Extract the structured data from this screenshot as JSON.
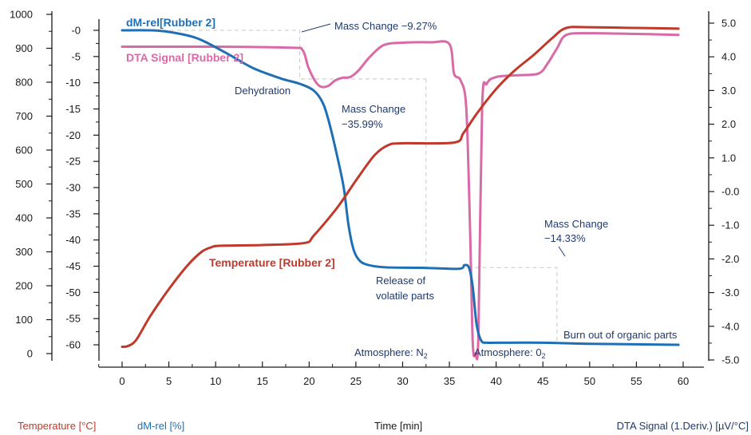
{
  "chart_data": {
    "type": "line",
    "x_axis": {
      "label": "Time [min]",
      "range": [
        0,
        60
      ],
      "ticks": [
        0,
        5,
        10,
        15,
        20,
        25,
        30,
        35,
        40,
        45,
        50,
        55,
        60
      ]
    },
    "y_axes": {
      "temperature": {
        "label": "Temperature [°C]",
        "range": [
          0,
          1000
        ],
        "ticks": [
          0,
          100,
          200,
          300,
          400,
          500,
          600,
          700,
          800,
          900,
          1000
        ],
        "color": "#c0392b"
      },
      "mass": {
        "label": "dM-rel [%]",
        "range": [
          -60,
          0
        ],
        "ticks": [
          -60,
          -55,
          -50,
          -45,
          -40,
          -35,
          -30,
          -25,
          -20,
          -15,
          -10,
          -5,
          0
        ],
        "tick_labels": [
          "-60",
          "-55",
          "-50",
          "-45",
          "-40",
          "-35",
          "-30",
          "-25",
          "-20",
          "-15",
          "-10",
          "-5",
          "-0"
        ],
        "color": "#1f6fb4"
      },
      "dta": {
        "label": "DTA Signal (1.Deriv.) [µV/°C]",
        "range": [
          -5.0,
          5.0
        ],
        "ticks": [
          -5.0,
          -4.0,
          -3.0,
          -2.0,
          -1.0,
          0.0,
          1.0,
          2.0,
          3.0,
          4.0,
          5.0
        ],
        "tick_labels": [
          "-5.0",
          "-4.0",
          "-3.0",
          "-2.0",
          "-1.0",
          "-0.0",
          "1.0",
          "2.0",
          "3.0",
          "4.0",
          "5.0"
        ],
        "color": "#d96aa8"
      }
    },
    "series": [
      {
        "name": "Temperature [Rubber 2]",
        "axis": "temperature",
        "color": "#c0392b",
        "x": [
          0,
          0.6,
          1.5,
          3,
          5,
          7,
          8.5,
          9.5,
          10.5,
          15,
          19.5,
          20.5,
          23,
          25,
          27,
          28.5,
          30,
          35.5,
          36.5,
          38,
          40,
          42,
          44,
          46,
          47.5,
          50,
          55,
          59.5
        ],
        "y": [
          20,
          22,
          40,
          110,
          190,
          260,
          300,
          313,
          318,
          320,
          326,
          348,
          430,
          510,
          585,
          615,
          620,
          622,
          650,
          710,
          780,
          835,
          880,
          930,
          960,
          962,
          960,
          958
        ]
      },
      {
        "name": "dM-rel[Rubber 2]",
        "axis": "mass",
        "color": "#1f6fb4",
        "x": [
          0,
          3,
          5,
          8,
          11,
          14,
          17,
          19,
          20.5,
          21.5,
          22.2,
          23,
          23.7,
          24.2,
          24.7,
          25.2,
          26,
          28,
          32,
          36,
          36.6,
          37.1,
          37.5,
          37.9,
          38.4,
          39,
          40,
          45,
          50,
          55,
          59.5
        ],
        "y": [
          0,
          0,
          -0.3,
          -1.5,
          -4.2,
          -7.2,
          -9.2,
          -10.2,
          -11.5,
          -14,
          -18,
          -24,
          -30,
          -37,
          -41.5,
          -43.5,
          -44.6,
          -45.2,
          -45.3,
          -45.5,
          -44.8,
          -45.3,
          -49,
          -56,
          -59.2,
          -59.6,
          -59.6,
          -59.6,
          -59.8,
          -59.9,
          -60
        ]
      },
      {
        "name": "DTA Signal [Rubber 2]",
        "axis": "dta",
        "color": "#d96aa8",
        "x": [
          0,
          10,
          18,
          19.3,
          19.9,
          20.6,
          21.2,
          22,
          22.8,
          23.6,
          24.4,
          25.3,
          26.5,
          28,
          30,
          33,
          35,
          35.5,
          36.2,
          36.8,
          37.2,
          37.5,
          37.8,
          38.1,
          38.5,
          39,
          40,
          42,
          44.5,
          45.5,
          46.5,
          47.5,
          50,
          55,
          59.5
        ],
        "y": [
          4.3,
          4.3,
          4.27,
          4.2,
          3.7,
          3.3,
          3.12,
          3.13,
          3.3,
          3.38,
          3.4,
          3.6,
          4.0,
          4.35,
          4.42,
          4.43,
          4.38,
          3.5,
          3.3,
          2.5,
          -1.0,
          -4.5,
          -4.8,
          -4.3,
          2.5,
          3.2,
          3.4,
          3.45,
          3.5,
          3.8,
          4.25,
          4.65,
          4.7,
          4.68,
          4.65
        ]
      }
    ],
    "series_labels": {
      "mass": "dM-rel[Rubber 2]",
      "dta": "DTA Signal [Rubber 2]",
      "temperature": "Temperature [Rubber 2]"
    },
    "annotations": {
      "mass_change_1": "Mass Change −9.27%",
      "mass_change_2_line1": "Mass Change",
      "mass_change_2_line2": "−35.99%",
      "mass_change_3_line1": "Mass Change",
      "mass_change_3_line2": "−14.33%",
      "dehydration": "Dehydration",
      "release_line1": "Release of",
      "release_line2": "volatile parts",
      "burn_out": "Burn out of organic parts",
      "atmosphere_n2": "Atmosphere: N",
      "atmosphere_n2_sub": "2",
      "atmosphere_o2": "Atmosphere: 0",
      "atmosphere_o2_sub": "2"
    },
    "grid": false,
    "legend": "none"
  }
}
